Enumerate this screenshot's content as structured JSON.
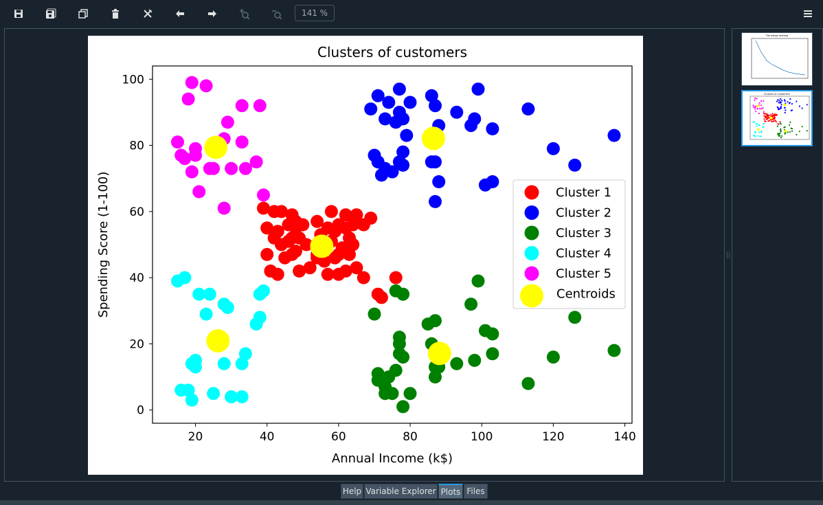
{
  "toolbar": {
    "zoom": "141 %",
    "buttons": [
      "save-icon",
      "save-all-icon",
      "copy-icon",
      "delete-icon",
      "delete-all-icon",
      "previous-icon",
      "next-icon",
      "zoom-in-icon",
      "zoom-out-icon"
    ]
  },
  "tabs": [
    {
      "label": "Help"
    },
    {
      "label": "Variable Explorer"
    },
    {
      "label": "Plots"
    },
    {
      "label": "Files"
    }
  ],
  "thumbnail_1": {
    "title": "The elbow method"
  },
  "thumbnail_2": {
    "title": "Clusters of customers"
  },
  "colors": {
    "Cluster 1": "#ff0000",
    "Cluster 2": "#0000ff",
    "Cluster 3": "#008000",
    "Cluster 4": "#00ffff",
    "Cluster 5": "#ff00ff",
    "Centroids": "#ffff00",
    "accent": "#259ae9"
  },
  "chart_data": {
    "type": "scatter",
    "title": "Clusters of customers",
    "xlabel": "Annual Income (k$)",
    "ylabel": "Spending Score (1-100)",
    "xlim": [
      8,
      142
    ],
    "ylim": [
      -4,
      104
    ],
    "xticks": [
      20,
      40,
      60,
      80,
      100,
      120,
      140
    ],
    "yticks": [
      0,
      20,
      40,
      60,
      80,
      100
    ],
    "legend_position": "center-right",
    "grid": false,
    "series": [
      {
        "name": "Cluster 1",
        "color": "#ff0000",
        "size": "small",
        "points": [
          [
            39,
            61
          ],
          [
            40,
            55
          ],
          [
            40,
            47
          ],
          [
            41,
            42
          ],
          [
            42,
            60
          ],
          [
            42,
            52
          ],
          [
            43,
            54
          ],
          [
            43,
            41
          ],
          [
            44,
            60
          ],
          [
            44,
            50
          ],
          [
            45,
            46
          ],
          [
            46,
            56
          ],
          [
            46,
            51
          ],
          [
            47,
            52
          ],
          [
            47,
            47
          ],
          [
            47,
            59
          ],
          [
            48,
            55
          ],
          [
            48,
            48
          ],
          [
            48,
            57
          ],
          [
            49,
            42
          ],
          [
            49,
            52
          ],
          [
            50,
            56
          ],
          [
            51,
            50
          ],
          [
            52,
            43
          ],
          [
            54,
            47
          ],
          [
            54,
            57
          ],
          [
            54,
            46
          ],
          [
            55,
            53
          ],
          [
            56,
            45
          ],
          [
            57,
            41
          ],
          [
            57,
            55
          ],
          [
            58,
            51
          ],
          [
            58,
            60
          ],
          [
            59,
            46
          ],
          [
            59,
            54
          ],
          [
            60,
            47
          ],
          [
            60,
            41
          ],
          [
            60,
            56
          ],
          [
            61,
            49
          ],
          [
            62,
            42
          ],
          [
            62,
            59
          ],
          [
            62,
            55
          ],
          [
            63,
            52
          ],
          [
            63,
            47
          ],
          [
            64,
            50
          ],
          [
            64,
            56
          ],
          [
            65,
            43
          ],
          [
            65,
            59
          ],
          [
            67,
            56
          ],
          [
            67,
            40
          ],
          [
            69,
            58
          ],
          [
            71,
            35
          ],
          [
            72,
            34
          ],
          [
            76,
            40
          ]
        ]
      },
      {
        "name": "Cluster 2",
        "color": "#0000ff",
        "size": "small",
        "points": [
          [
            69,
            91
          ],
          [
            70,
            77
          ],
          [
            71,
            95
          ],
          [
            71,
            75
          ],
          [
            72,
            71
          ],
          [
            73,
            88
          ],
          [
            73,
            73
          ],
          [
            74,
            93
          ],
          [
            75,
            72
          ],
          [
            76,
            87
          ],
          [
            77,
            97
          ],
          [
            77,
            75
          ],
          [
            77,
            90
          ],
          [
            78,
            74
          ],
          [
            78,
            78
          ],
          [
            78,
            88
          ],
          [
            79,
            83
          ],
          [
            80,
            93
          ],
          [
            86,
            75
          ],
          [
            86,
            95
          ],
          [
            87,
            63
          ],
          [
            87,
            75
          ],
          [
            87,
            92
          ],
          [
            88,
            86
          ],
          [
            88,
            69
          ],
          [
            93,
            90
          ],
          [
            97,
            86
          ],
          [
            98,
            88
          ],
          [
            99,
            97
          ],
          [
            101,
            68
          ],
          [
            103,
            69
          ],
          [
            103,
            85
          ],
          [
            113,
            91
          ],
          [
            120,
            79
          ],
          [
            126,
            74
          ],
          [
            137,
            83
          ]
        ]
      },
      {
        "name": "Cluster 3",
        "color": "#008000",
        "size": "small",
        "points": [
          [
            70,
            29
          ],
          [
            71,
            11
          ],
          [
            71,
            9
          ],
          [
            72,
            9
          ],
          [
            73,
            5
          ],
          [
            73,
            7
          ],
          [
            74,
            10
          ],
          [
            75,
            5
          ],
          [
            76,
            12
          ],
          [
            76,
            36
          ],
          [
            77,
            22
          ],
          [
            77,
            17
          ],
          [
            77,
            20
          ],
          [
            78,
            16
          ],
          [
            78,
            1
          ],
          [
            78,
            35
          ],
          [
            80,
            5
          ],
          [
            85,
            26
          ],
          [
            86,
            20
          ],
          [
            87,
            10
          ],
          [
            87,
            13
          ],
          [
            87,
            27
          ],
          [
            88,
            13
          ],
          [
            93,
            14
          ],
          [
            97,
            32
          ],
          [
            98,
            15
          ],
          [
            99,
            39
          ],
          [
            101,
            24
          ],
          [
            103,
            17
          ],
          [
            103,
            23
          ],
          [
            113,
            8
          ],
          [
            120,
            16
          ],
          [
            126,
            28
          ],
          [
            137,
            18
          ]
        ]
      },
      {
        "name": "Cluster 4",
        "color": "#00ffff",
        "size": "small",
        "points": [
          [
            15,
            39
          ],
          [
            16,
            6
          ],
          [
            17,
            40
          ],
          [
            18,
            6
          ],
          [
            19,
            3
          ],
          [
            19,
            14
          ],
          [
            20,
            15
          ],
          [
            20,
            13
          ],
          [
            21,
            35
          ],
          [
            23,
            29
          ],
          [
            24,
            35
          ],
          [
            25,
            5
          ],
          [
            28,
            32
          ],
          [
            28,
            14
          ],
          [
            29,
            31
          ],
          [
            30,
            4
          ],
          [
            33,
            4
          ],
          [
            33,
            14
          ],
          [
            34,
            17
          ],
          [
            37,
            26
          ],
          [
            38,
            35
          ],
          [
            38,
            28
          ],
          [
            39,
            36
          ]
        ]
      },
      {
        "name": "Cluster 5",
        "color": "#ff00ff",
        "size": "small",
        "points": [
          [
            15,
            81
          ],
          [
            16,
            77
          ],
          [
            17,
            76
          ],
          [
            18,
            94
          ],
          [
            19,
            99
          ],
          [
            19,
            72
          ],
          [
            20,
            77
          ],
          [
            20,
            79
          ],
          [
            21,
            66
          ],
          [
            23,
            98
          ],
          [
            24,
            73
          ],
          [
            25,
            73
          ],
          [
            28,
            82
          ],
          [
            28,
            61
          ],
          [
            29,
            87
          ],
          [
            30,
            73
          ],
          [
            33,
            92
          ],
          [
            33,
            81
          ],
          [
            34,
            73
          ],
          [
            37,
            75
          ],
          [
            38,
            92
          ],
          [
            39,
            65
          ]
        ]
      },
      {
        "name": "Centroids",
        "color": "#ffff00",
        "size": "large",
        "points": [
          [
            55.3,
            49.5
          ],
          [
            86.5,
            82.1
          ],
          [
            88.2,
            17.1
          ],
          [
            26.3,
            20.9
          ],
          [
            25.7,
            79.4
          ]
        ]
      }
    ]
  }
}
